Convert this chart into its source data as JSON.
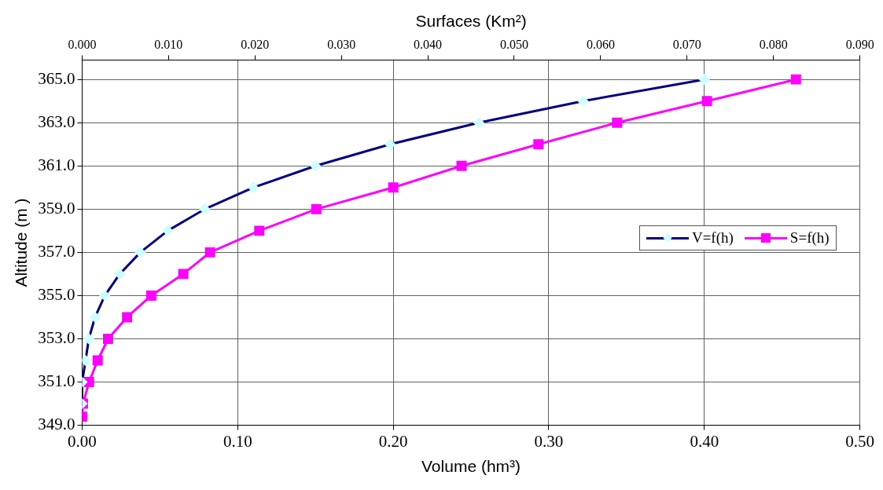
{
  "chart_data": {
    "type": "line",
    "xlabel": "Volume (hm³)",
    "x2label": "Surfaces (Km²)",
    "ylabel": "Altitude (m )",
    "xlim": [
      0,
      0.5
    ],
    "xticks": [
      {
        "value": 0,
        "label": "0.00"
      },
      {
        "value": 0.1,
        "label": "0.10"
      },
      {
        "value": 0.2,
        "label": "0.20"
      },
      {
        "value": 0.3,
        "label": "0.30"
      },
      {
        "value": 0.4,
        "label": "0.40"
      },
      {
        "value": 0.5,
        "label": "0.50"
      }
    ],
    "x2lim": [
      0,
      0.09
    ],
    "x2ticks": [
      {
        "value": 0,
        "label": "0.000"
      },
      {
        "value": 0.01,
        "label": "0.010"
      },
      {
        "value": 0.02,
        "label": "0.020"
      },
      {
        "value": 0.03,
        "label": "0.030"
      },
      {
        "value": 0.04,
        "label": "0.040"
      },
      {
        "value": 0.05,
        "label": "0.050"
      },
      {
        "value": 0.06,
        "label": "0.060"
      },
      {
        "value": 0.07,
        "label": "0.070"
      },
      {
        "value": 0.08,
        "label": "0.080"
      },
      {
        "value": 0.09,
        "label": "0.090"
      }
    ],
    "ylim": [
      349,
      365.9
    ],
    "yticks": [
      {
        "value": 349,
        "label": "349.0"
      },
      {
        "value": 351,
        "label": "351.0"
      },
      {
        "value": 353,
        "label": "353.0"
      },
      {
        "value": 355,
        "label": "355.0"
      },
      {
        "value": 357,
        "label": "357.0"
      },
      {
        "value": 359,
        "label": "359.0"
      },
      {
        "value": 361,
        "label": "361.0"
      },
      {
        "value": 363,
        "label": "363.0"
      },
      {
        "value": 365,
        "label": "365.0"
      }
    ],
    "grid": true,
    "legend": "right",
    "line_style": "solid",
    "series": [
      {
        "name": "V=f(h)",
        "color": "#000080",
        "marker": "diamond",
        "x": [
          0,
          0,
          0.0022,
          0.0043,
          0.0083,
          0.0146,
          0.0242,
          0.0374,
          0.055,
          0.0788,
          0.11,
          0.15,
          0.198,
          0.255,
          0.322,
          0.4
        ],
        "values": [
          350,
          351,
          352,
          353,
          354,
          355,
          356,
          357,
          358,
          359,
          360,
          361,
          362,
          363,
          364,
          365
        ]
      },
      {
        "name": "S=f(h)",
        "color": "#ff00ff",
        "marker": "square",
        "axis": "x2",
        "x": [
          0,
          0.0001,
          0.0008,
          0.0018,
          0.003,
          0.0052,
          0.008,
          0.0117,
          0.0148,
          0.0205,
          0.0271,
          0.036,
          0.0439,
          0.0528,
          0.0619,
          0.0723,
          0.0826
        ],
        "values": [
          349.4,
          350,
          351,
          352,
          353,
          354,
          355,
          356,
          357,
          358,
          359,
          360,
          361,
          362,
          363,
          364,
          365
        ]
      }
    ]
  }
}
